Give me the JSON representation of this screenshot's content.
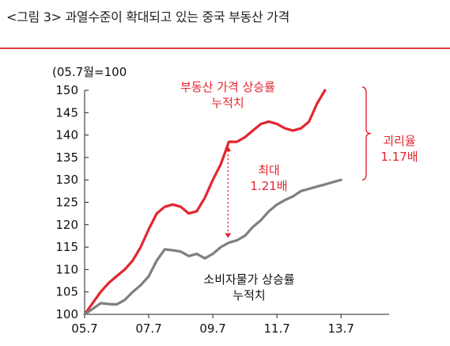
{
  "header": {
    "title": "<그림 3> 과열수준이 확대되고 있는 중국 부동산 가격"
  },
  "colors": {
    "accent": "#e03a3e",
    "housing": "#e3262f",
    "cpi": "#7f7f7f"
  },
  "chart_data": {
    "type": "line",
    "unit_label": "(05.7월=100",
    "x_ticks": [
      "05.7",
      "07.7",
      "09.7",
      "11.7",
      "13.7"
    ],
    "y_ticks": [
      "100",
      "105",
      "110",
      "115",
      "120",
      "125",
      "130",
      "135",
      "140",
      "145",
      "150"
    ],
    "ylim": [
      100,
      150
    ],
    "grid": false,
    "x": [
      "05.7",
      "05.10",
      "06.1",
      "06.4",
      "06.7",
      "06.10",
      "07.1",
      "07.4",
      "07.7",
      "07.10",
      "08.1",
      "08.4",
      "08.7",
      "08.10",
      "09.1",
      "09.4",
      "09.7",
      "09.10",
      "10.1",
      "10.4",
      "10.7",
      "10.10",
      "11.1",
      "11.4",
      "11.7",
      "11.10",
      "12.1",
      "12.4",
      "12.7",
      "12.10",
      "13.1",
      "13.4",
      "13.7",
      "13.10"
    ],
    "series": [
      {
        "values": [
          100,
          102.5,
          105,
          107,
          108.5,
          110,
          112,
          115,
          119,
          122.5,
          124,
          124.5,
          124,
          122.5,
          123,
          126,
          130,
          133.5,
          138.5,
          138.5,
          139.5,
          141,
          142.5,
          143,
          142.5,
          141.5,
          141,
          141.5,
          143,
          147,
          150,
          null,
          null,
          null
        ]
      },
      {
        "values": [
          100,
          101.2,
          102.5,
          102.3,
          102.2,
          103.2,
          105,
          106.5,
          108.5,
          112,
          114.5,
          114.3,
          114,
          113,
          113.5,
          112.5,
          113.5,
          115,
          116,
          116.5,
          117.5,
          119.5,
          121,
          123,
          124.5,
          125.5,
          126.3,
          127.5,
          128,
          128.5,
          129,
          129.5,
          130,
          null
        ]
      }
    ],
    "annotations": {
      "housing_label": [
        "부동산 가격 상승률",
        "누적치"
      ],
      "cpi_label": [
        "소비자물가 상승률",
        "누적치"
      ],
      "max_gap": [
        "최대",
        "1.21배"
      ],
      "current_gap": [
        "괴리율",
        "1.17배"
      ]
    }
  }
}
